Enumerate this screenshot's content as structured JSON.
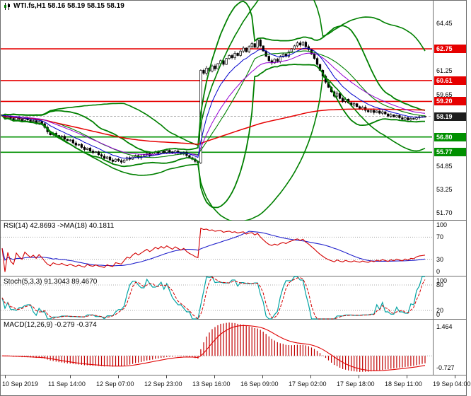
{
  "window": {
    "title": "WTI.fs,H1 58.16 58.19 58.15 58.19"
  },
  "panels": {
    "main": {
      "y_min": 51.2,
      "y_max": 66.0,
      "ticks": [
        64.45,
        61.25,
        59.65,
        54.85,
        53.25,
        51.7
      ],
      "levels": [
        {
          "value": 62.75,
          "type": "resistance"
        },
        {
          "value": 60.61,
          "type": "resistance"
        },
        {
          "value": 59.2,
          "type": "resistance"
        },
        {
          "value": 56.8,
          "type": "support"
        },
        {
          "value": 55.77,
          "type": "support"
        }
      ],
      "current_price": 58.19
    },
    "rsi": {
      "label": "RSI(14) 42.8693 ->MA(18) 40.1811",
      "ticks": [
        100,
        70,
        30,
        0
      ],
      "guides": [
        70,
        30
      ],
      "period": 14,
      "ma_period": 18
    },
    "stoch": {
      "label": "Stoch(5,3,3) 91.3043 89.4670",
      "ticks": [
        100,
        80,
        20,
        0
      ],
      "guides": [
        80,
        20
      ],
      "k": 5,
      "slowing": 3,
      "d": 3
    },
    "macd": {
      "label": "MACD(12,26,9) -0.279 -0.374",
      "ticks": [
        1.464,
        -0.727
      ],
      "fast": 12,
      "slow": 26,
      "signal": 9
    }
  },
  "time_axis": {
    "labels": [
      "10 Sep 2019",
      "11 Sep 14:00",
      "12 Sep 07:00",
      "12 Sep 23:00",
      "13 Sep 16:00",
      "16 Sep 09:00",
      "17 Sep 02:00",
      "17 Sep 18:00",
      "18 Sep 11:00",
      "19 Sep 04:00"
    ]
  },
  "chart_data": {
    "type": "candlestick",
    "symbol": "WTI.fs",
    "timeframe": "H1",
    "quote": {
      "open": 58.16,
      "high": 58.19,
      "low": 58.15,
      "close": 58.19
    },
    "first_open": 58.3,
    "y_range": [
      51.2,
      66.0
    ],
    "resistance_levels": [
      62.75,
      60.61,
      59.2
    ],
    "support_levels": [
      56.8,
      55.77
    ],
    "current_price": 58.19,
    "indicator_values": {
      "rsi": 42.8693,
      "rsi_ma": 40.1811,
      "stoch_k": 91.3043,
      "stoch_d": 89.467,
      "macd": -0.279,
      "macd_signal": -0.374
    },
    "overlays": [
      {
        "name": "Bollinger Bands",
        "period": 20,
        "deviation": 2.0,
        "color": "green"
      },
      {
        "name": "Bollinger Bands",
        "period": 44,
        "deviation": 2.2,
        "color": "green"
      },
      {
        "name": "MA slow",
        "color": "red"
      },
      {
        "name": "MA medium",
        "color": "purple"
      },
      {
        "name": "MA fast",
        "color": "blue"
      }
    ],
    "closes": [
      58.25,
      58.1,
      58.2,
      58.05,
      57.95,
      58.1,
      58.0,
      57.9,
      58.05,
      57.95,
      57.85,
      57.9,
      57.75,
      57.85,
      57.7,
      57.45,
      57.15,
      56.95,
      57.05,
      56.9,
      56.8,
      56.85,
      56.65,
      56.55,
      56.6,
      56.4,
      56.25,
      56.3,
      56.1,
      55.95,
      56.05,
      55.85,
      55.75,
      55.8,
      55.6,
      55.5,
      55.35,
      55.45,
      55.25,
      55.15,
      55.3,
      55.2,
      55.1,
      55.25,
      55.4,
      55.3,
      55.45,
      55.55,
      55.4,
      55.5,
      55.6,
      55.7,
      55.55,
      55.65,
      55.8,
      55.7,
      55.85,
      55.75,
      55.9,
      55.8,
      55.7,
      55.85,
      55.75,
      55.65,
      55.75,
      55.55,
      55.4,
      55.3,
      55.15,
      55.05,
      61.3,
      61.1,
      61.45,
      61.25,
      61.6,
      61.4,
      61.75,
      61.95,
      61.7,
      62.1,
      62.3,
      62.15,
      62.45,
      62.3,
      62.6,
      62.8,
      62.55,
      62.9,
      63.1,
      62.85,
      63.35,
      62.95,
      62.6,
      62.25,
      61.95,
      61.8,
      62.05,
      61.9,
      62.2,
      62.4,
      62.25,
      62.55,
      62.75,
      62.95,
      63.15,
      63.0,
      63.2,
      62.9,
      62.7,
      62.4,
      62.1,
      61.7,
      61.3,
      60.9,
      60.5,
      60.15,
      59.85,
      59.55,
      59.75,
      59.4,
      59.2,
      59.35,
      59.1,
      58.95,
      59.05,
      58.85,
      58.7,
      58.8,
      58.6,
      58.5,
      58.6,
      58.45,
      58.55,
      58.4,
      58.5,
      58.35,
      58.2,
      58.3,
      58.15,
      58.25,
      58.1,
      58.0,
      58.1,
      57.95,
      58.05,
      58.0,
      58.1,
      58.15,
      58.17,
      58.19
    ]
  },
  "colors": {
    "background": "#ffffff",
    "border": "#6e6e6e",
    "bull": "#ffffff",
    "bear": "#000000",
    "wick": "#000000",
    "bands": "#008000",
    "ma_slow": "#e60000",
    "ma_fast": "#0000cc",
    "ma_mid": "#9400d3",
    "level_res": "#e60000",
    "level_sup": "#009000",
    "price_box": "#1c1c1c",
    "rsi": "#d40000",
    "rsi_ma": "#2222cc",
    "stoch_main": "#00a3a3",
    "stoch_signal": "#d40000",
    "macd_hist": "#c00000",
    "macd_signal": "#e00000",
    "guide": "#aaaaaa",
    "axis_text": "#000000"
  }
}
